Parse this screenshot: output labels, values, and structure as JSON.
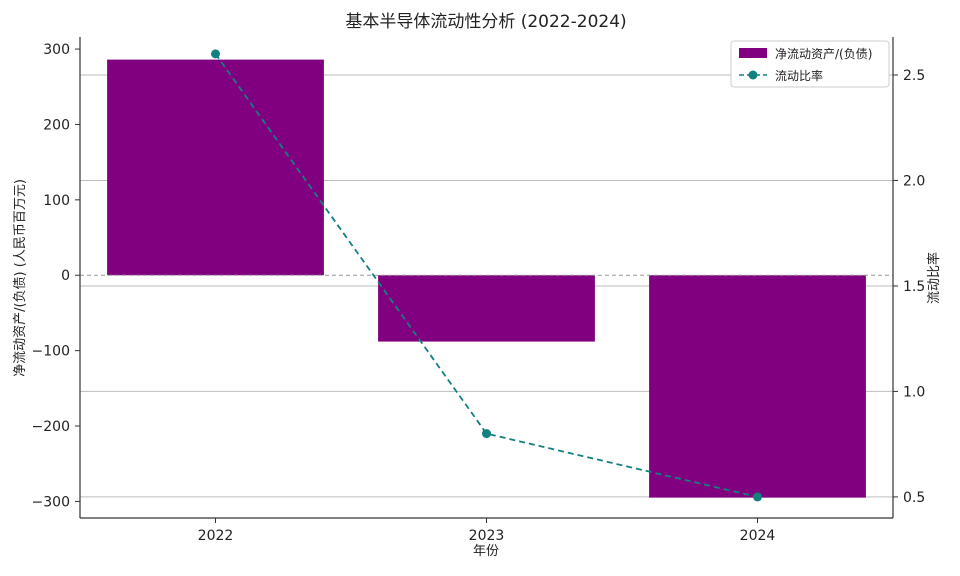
{
  "chart_data": {
    "type": "bar",
    "title": "基本半导体流动性分析 (2022-2024)",
    "xlabel": "年份",
    "ylabel": "净流动资产/(负债) (人民币百万元)",
    "y2label": "流动比率",
    "categories": [
      "2022",
      "2023",
      "2024"
    ],
    "series": [
      {
        "name": "净流动资产/(负债)",
        "type": "bar",
        "axis": "left",
        "values": [
          286,
          -88,
          -295
        ],
        "color": "#800080"
      },
      {
        "name": "流动比率",
        "type": "line",
        "axis": "right",
        "values": [
          2.6,
          0.8,
          0.5
        ],
        "color": "#138080",
        "line_style": "dashed",
        "marker": "circle"
      }
    ],
    "ylim": [
      -322,
      316
    ],
    "y_ticks": [
      -300,
      -200,
      -100,
      0,
      100,
      200,
      300
    ],
    "y_tick_labels": [
      "−300",
      "−200",
      "−100",
      "0",
      "100",
      "200",
      "300"
    ],
    "y2lim": [
      0.4,
      2.68
    ],
    "y2_ticks": [
      0.5,
      1.0,
      1.5,
      2.0,
      2.5
    ],
    "y2_tick_labels": [
      "0.5",
      "1.0",
      "1.5",
      "2.0",
      "2.5"
    ],
    "grid": "horizontal lines at right-axis ticks",
    "zero_line": "dashed",
    "legend_position": "top-right"
  }
}
